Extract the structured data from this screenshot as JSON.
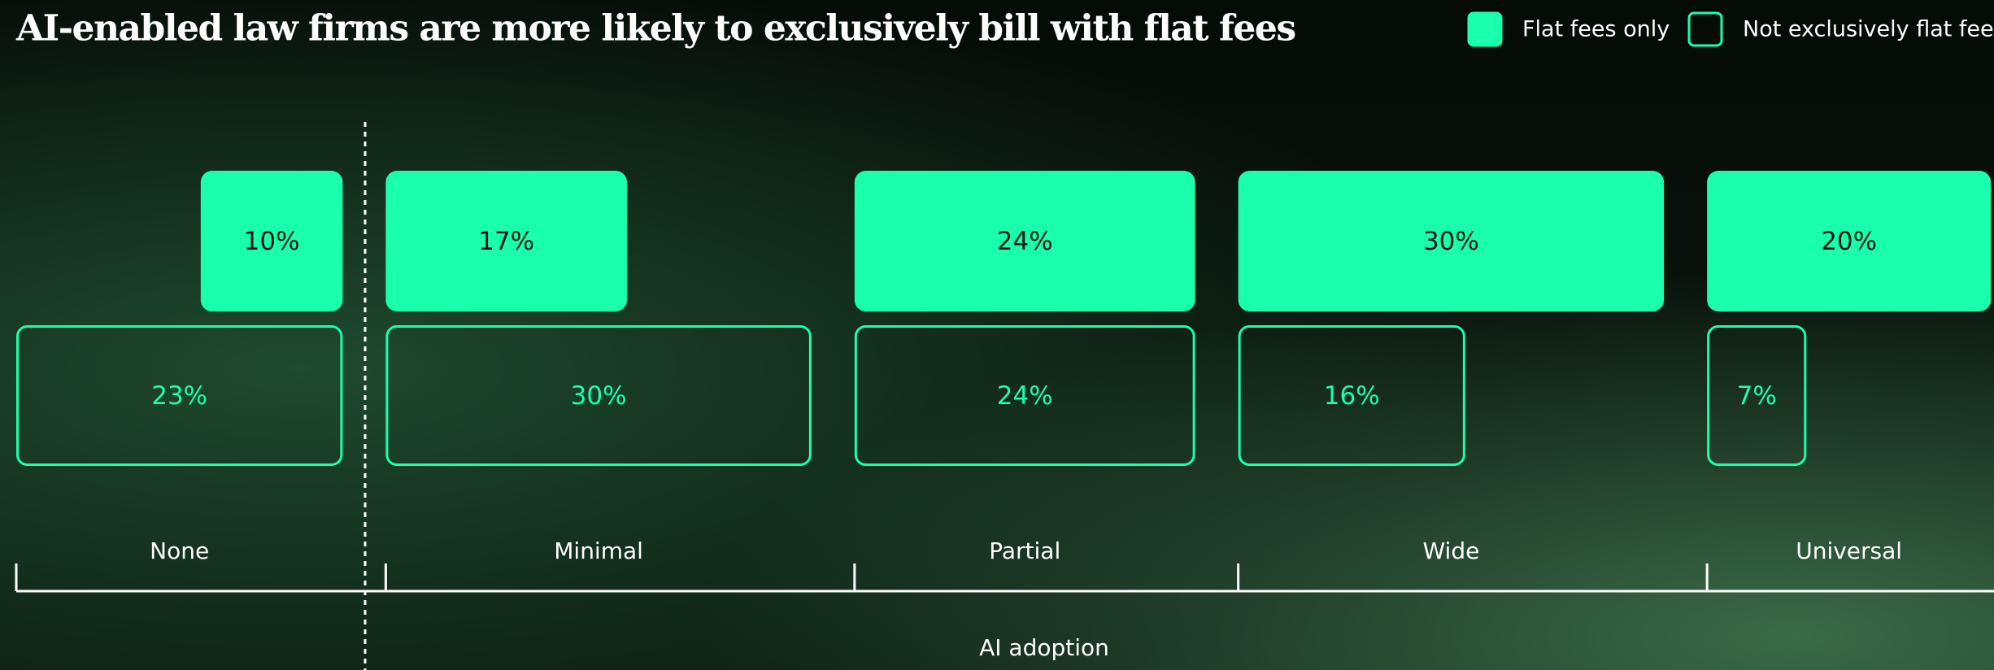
{
  "chart_data": {
    "type": "bar",
    "title": "AI-enabled law firms are more likely to exclusively bill with flat fees",
    "x_label": "AI adoption",
    "categories": [
      "None",
      "Minimal",
      "Partial",
      "Wide",
      "Universal"
    ],
    "series": [
      {
        "name": "Flat fees only",
        "color": "#1affad",
        "values": [
          10,
          17,
          24,
          30,
          20
        ],
        "value_labels": [
          "10%",
          "17%",
          "24%",
          "30%",
          "20%"
        ]
      },
      {
        "name": "Not exclusively flat fee",
        "color": "#1affad",
        "values": [
          23,
          30,
          24,
          16,
          7
        ],
        "value_labels": [
          "23%",
          "30%",
          "24%",
          "16%",
          "7%"
        ]
      }
    ]
  }
}
